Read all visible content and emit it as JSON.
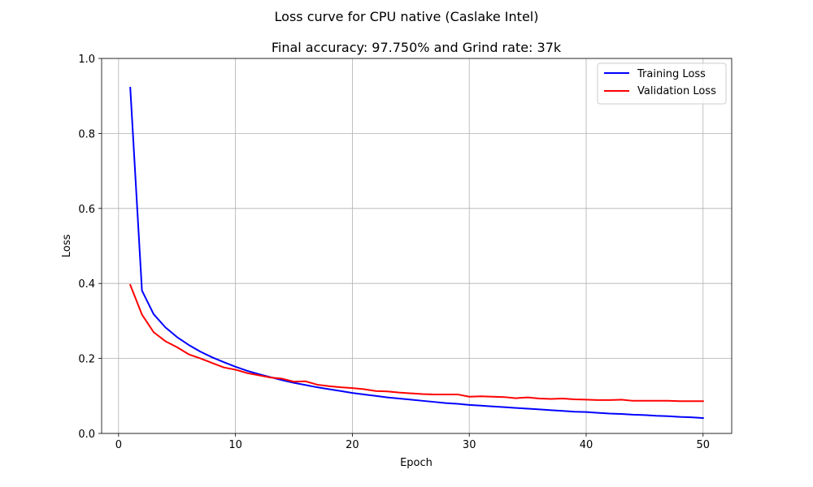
{
  "figure": {
    "suptitle": "Loss curve for CPU native (Caslake Intel)"
  },
  "chart_data": {
    "type": "line",
    "title": "Final accuracy: 97.750% and Grind rate: 37k",
    "xlabel": "Epoch",
    "ylabel": "Loss",
    "xlim": [
      -1.45,
      52.45
    ],
    "ylim": [
      0.0,
      1.0
    ],
    "xticks": [
      0,
      10,
      20,
      30,
      40,
      50
    ],
    "yticks": [
      0.0,
      0.2,
      0.4,
      0.6,
      0.8,
      1.0
    ],
    "xtick_labels": [
      "0",
      "10",
      "20",
      "30",
      "40",
      "50"
    ],
    "ytick_labels": [
      "0.0",
      "0.2",
      "0.4",
      "0.6",
      "0.8",
      "1.0"
    ],
    "grid": true,
    "legend_position": "top-right",
    "x": [
      1,
      2,
      3,
      4,
      5,
      6,
      7,
      8,
      9,
      10,
      11,
      12,
      13,
      14,
      15,
      16,
      17,
      18,
      19,
      20,
      21,
      22,
      23,
      24,
      25,
      26,
      27,
      28,
      29,
      30,
      31,
      32,
      33,
      34,
      35,
      36,
      37,
      38,
      39,
      40,
      41,
      42,
      43,
      44,
      45,
      46,
      47,
      48,
      49,
      50
    ],
    "series": [
      {
        "name": "Training Loss",
        "color": "#0000ff",
        "values": [
          0.922,
          0.381,
          0.318,
          0.283,
          0.257,
          0.236,
          0.218,
          0.203,
          0.19,
          0.178,
          0.167,
          0.158,
          0.15,
          0.142,
          0.135,
          0.129,
          0.123,
          0.118,
          0.113,
          0.108,
          0.104,
          0.1,
          0.096,
          0.093,
          0.09,
          0.087,
          0.084,
          0.081,
          0.079,
          0.076,
          0.074,
          0.072,
          0.07,
          0.068,
          0.066,
          0.064,
          0.062,
          0.06,
          0.058,
          0.057,
          0.055,
          0.053,
          0.052,
          0.05,
          0.049,
          0.047,
          0.046,
          0.044,
          0.043,
          0.041
        ]
      },
      {
        "name": "Validation Loss",
        "color": "#ff0000",
        "values": [
          0.396,
          0.317,
          0.27,
          0.246,
          0.23,
          0.211,
          0.2,
          0.188,
          0.176,
          0.17,
          0.161,
          0.155,
          0.149,
          0.146,
          0.138,
          0.139,
          0.13,
          0.126,
          0.123,
          0.121,
          0.118,
          0.113,
          0.112,
          0.109,
          0.107,
          0.105,
          0.104,
          0.104,
          0.104,
          0.098,
          0.099,
          0.098,
          0.097,
          0.094,
          0.096,
          0.093,
          0.092,
          0.093,
          0.091,
          0.09,
          0.089,
          0.089,
          0.09,
          0.087,
          0.087,
          0.087,
          0.087,
          0.086,
          0.086,
          0.086
        ]
      }
    ]
  }
}
